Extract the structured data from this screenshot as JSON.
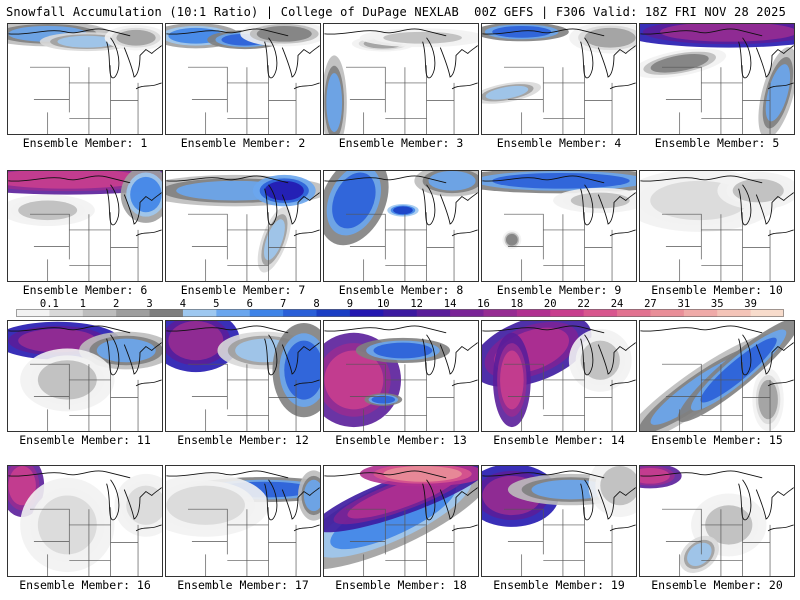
{
  "header": {
    "title_left": "Snowfall Accumulation (10:1 Ratio) | College of DuPage NEXLAB",
    "title_right": "00Z GEFS | F306 Valid: 18Z FRI NOV 28 2025"
  },
  "legend": {
    "ticks": [
      "0.1",
      "1",
      "2",
      "3",
      "4",
      "5",
      "6",
      "7",
      "8",
      "9",
      "10",
      "12",
      "14",
      "16",
      "18",
      "20",
      "22",
      "24",
      "27",
      "31",
      "35",
      "39"
    ],
    "colors": [
      "#f2f2f2",
      "#d9d9d9",
      "#bdbdbd",
      "#9e9e9e",
      "#7f7f7f",
      "#9ec8f0",
      "#6aa6ee",
      "#3f84e8",
      "#2a5fd8",
      "#1a3ec4",
      "#2418b0",
      "#3c1aa0",
      "#5a1e9a",
      "#7a2496",
      "#962c92",
      "#b03090",
      "#c83e8e",
      "#d8568e",
      "#e27290",
      "#e98e98",
      "#efaaa8",
      "#f4c4b8",
      "#f8dccc"
    ]
  },
  "panels": [
    {
      "label": "Ensemble Member: 1"
    },
    {
      "label": "Ensemble Member: 2"
    },
    {
      "label": "Ensemble Member: 3"
    },
    {
      "label": "Ensemble Member: 4"
    },
    {
      "label": "Ensemble Member: 5"
    },
    {
      "label": "Ensemble Member: 6"
    },
    {
      "label": "Ensemble Member: 7"
    },
    {
      "label": "Ensemble Member: 8"
    },
    {
      "label": "Ensemble Member: 9"
    },
    {
      "label": "Ensemble Member: 10"
    },
    {
      "label": "Ensemble Member: 11"
    },
    {
      "label": "Ensemble Member: 12"
    },
    {
      "label": "Ensemble Member: 13"
    },
    {
      "label": "Ensemble Member: 14"
    },
    {
      "label": "Ensemble Member: 15"
    },
    {
      "label": "Ensemble Member: 16"
    },
    {
      "label": "Ensemble Member: 17"
    },
    {
      "label": "Ensemble Member: 18"
    },
    {
      "label": "Ensemble Member: 19"
    },
    {
      "label": "Ensemble Member: 20"
    }
  ]
}
